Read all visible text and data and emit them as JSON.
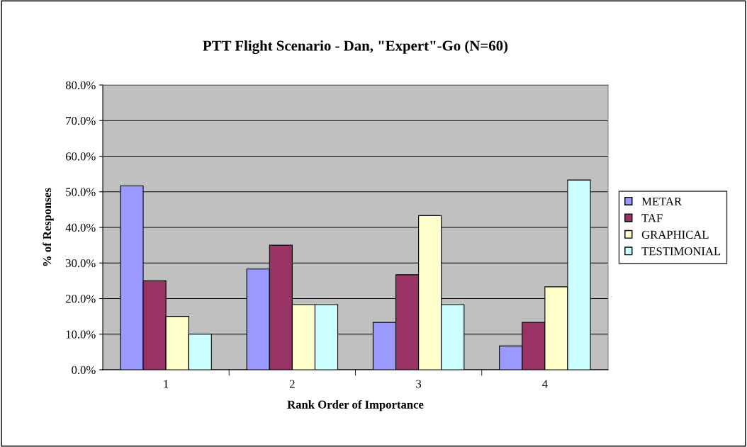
{
  "chart_data": {
    "type": "bar",
    "title": "PTT Flight Scenario - Dan, \"Expert\"-Go (N=60)",
    "xlabel": "Rank Order of Importance",
    "ylabel": "% of Responses",
    "categories": [
      "1",
      "2",
      "3",
      "4"
    ],
    "series": [
      {
        "name": "METAR",
        "color": "#9999ff",
        "values": [
          51.7,
          28.3,
          13.3,
          6.7
        ]
      },
      {
        "name": "TAF",
        "color": "#993366",
        "values": [
          25.0,
          35.0,
          26.7,
          13.3
        ]
      },
      {
        "name": "GRAPHICAL",
        "color": "#ffffcc",
        "values": [
          15.0,
          18.3,
          43.3,
          23.3
        ]
      },
      {
        "name": "TESTIMONIAL",
        "color": "#ccffff",
        "values": [
          10.0,
          18.3,
          18.3,
          53.3
        ]
      }
    ],
    "ylim": [
      0,
      80
    ],
    "yticks": [
      {
        "value": 0,
        "label": "0.0%"
      },
      {
        "value": 10,
        "label": "10.0%"
      },
      {
        "value": 20,
        "label": "20.0%"
      },
      {
        "value": 30,
        "label": "30.0%"
      },
      {
        "value": 40,
        "label": "40.0%"
      },
      {
        "value": 50,
        "label": "50.0%"
      },
      {
        "value": 60,
        "label": "60.0%"
      },
      {
        "value": 70,
        "label": "70.0%"
      },
      {
        "value": 80,
        "label": "80.0%"
      }
    ],
    "grid": "y",
    "legend": "right"
  }
}
